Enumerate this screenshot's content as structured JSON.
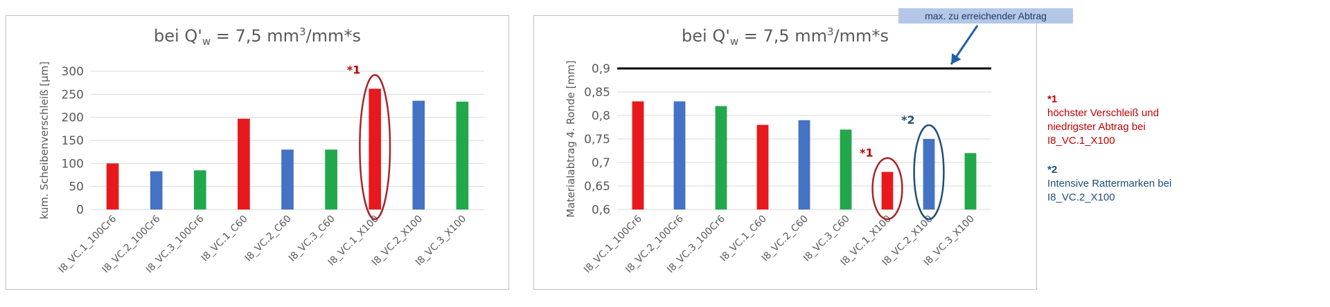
{
  "charts": [
    {
      "title": {
        "prefix": "bei Q'",
        "sub": "w",
        "mid": " = 7,5 mm",
        "sup": "3",
        "suffix": "/mm*s"
      },
      "chart_data": {
        "type": "bar",
        "categories": [
          "I8_VC.1_100Cr6",
          "I8_VC.2_100Cr6",
          "I8_VC.3_100Cr6",
          "I8_VC.1_C60",
          "I8_VC.2_C60",
          "I8_VC.3_C60",
          "I8_VC.1_X100",
          "I8_VC.2_X100",
          "I8_VC.3_X100"
        ],
        "values": [
          100,
          83,
          85,
          197,
          130,
          130,
          262,
          236,
          234
        ],
        "colors": [
          "#e8191d",
          "#4472c4",
          "#22a84b",
          "#e8191d",
          "#4472c4",
          "#22a84b",
          "#e8191d",
          "#4472c4",
          "#22a84b"
        ],
        "ylabel": "kum. Scheibenverschleiß [µm]",
        "ylim": [
          0,
          300
        ],
        "yticks": [
          0,
          50,
          100,
          150,
          200,
          250,
          300
        ],
        "ytick_labels": [
          "0",
          "50",
          "100",
          "150",
          "200",
          "250",
          "300"
        ],
        "grid": true,
        "annotations": [
          {
            "text": "*1",
            "category_index": 6,
            "color": "#c00000",
            "ellipse_color": "#a5252a"
          }
        ]
      }
    },
    {
      "title": {
        "prefix": "bei Q'",
        "sub": "w",
        "mid": " = 7,5 mm",
        "sup": "3",
        "suffix": "/mm*s"
      },
      "chart_data": {
        "type": "bar",
        "categories": [
          "I8_VC.1_100Cr6",
          "I8_VC.2_100Cr6",
          "I8_VC.3_100Cr6",
          "I8_VC.1_C60",
          "I8_VC.2_C60",
          "I8_VC.3_C60",
          "I8_VC.1_X100",
          "I8_VC.2_X100",
          "I8_VC.3_X100"
        ],
        "values": [
          0.83,
          0.83,
          0.82,
          0.78,
          0.79,
          0.77,
          0.68,
          0.75,
          0.72
        ],
        "colors": [
          "#e8191d",
          "#4472c4",
          "#22a84b",
          "#e8191d",
          "#4472c4",
          "#22a84b",
          "#e8191d",
          "#4472c4",
          "#22a84b"
        ],
        "ylabel": "Materialabtrag 4. Ronde [mm]",
        "ylim": [
          0.6,
          0.9
        ],
        "yticks": [
          0.6,
          0.65,
          0.7,
          0.75,
          0.8,
          0.85,
          0.9
        ],
        "ytick_labels": [
          "0,6",
          "0,65",
          "0,7",
          "0,75",
          "0,8",
          "0,85",
          "0,9"
        ],
        "grid": true,
        "reference_line": {
          "value": 0.9,
          "color": "#000000"
        },
        "callout": {
          "text": "max. zu erreichender Abtrag",
          "bg": "#b4c7e7",
          "arrow_color": "#1f5fae"
        },
        "annotations": [
          {
            "text": "*1",
            "category_index": 6,
            "color": "#c00000",
            "ellipse_color": "#a5252a"
          },
          {
            "text": "*2",
            "category_index": 7,
            "color": "#1f4e79",
            "ellipse_color": "#1f4e79"
          }
        ]
      }
    }
  ],
  "notes": [
    {
      "marker": "*1",
      "lines": [
        "höchster Verschleiß und",
        "niedrigster Abtrag bei",
        "I8_VC.1_X100"
      ],
      "color": "#c00000"
    },
    {
      "marker": "*2",
      "lines": [
        "Intensive Rattermarken bei",
        "I8_VC.2_X100"
      ],
      "color": "#1f4e79"
    }
  ]
}
